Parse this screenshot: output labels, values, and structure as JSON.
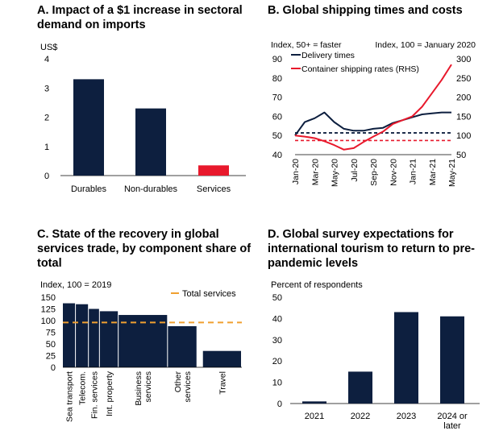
{
  "chart_data": [
    {
      "id": "A",
      "type": "bar",
      "title": "A. Impact of a $1 increase in sectoral demand on imports",
      "ylabel": "US$",
      "ylim": [
        0,
        4
      ],
      "yticks": [
        0,
        1,
        2,
        3,
        4
      ],
      "categories": [
        "Durables",
        "Non-durables",
        "Services"
      ],
      "values": [
        3.3,
        2.3,
        0.35
      ],
      "colors": [
        "#0d1f3f",
        "#0d1f3f",
        "#e8192c"
      ]
    },
    {
      "id": "B",
      "type": "line",
      "title": "B. Global shipping times and costs",
      "left_axis_label": "Index, 50+ = faster",
      "right_axis_label": "Index, 100 = January 2020",
      "ylim_left": [
        40,
        90
      ],
      "yticks_left": [
        40,
        50,
        60,
        70,
        80,
        90
      ],
      "ylim_right": [
        50,
        300
      ],
      "yticks_right": [
        50,
        100,
        150,
        200,
        250,
        300
      ],
      "x": [
        "Jan-20",
        "Feb-20",
        "Mar-20",
        "Apr-20",
        "May-20",
        "Jun-20",
        "Jul-20",
        "Aug-20",
        "Sep-20",
        "Oct-20",
        "Nov-20",
        "Dec-20",
        "Jan-21",
        "Feb-21",
        "Mar-21",
        "Apr-21",
        "May-21"
      ],
      "xtick_labels": [
        "Jan-20",
        "Mar-20",
        "May-20",
        "Jul-20",
        "Sep-20",
        "Nov-20",
        "Jan-21",
        "Mar-21",
        "May-21"
      ],
      "series": [
        {
          "name": "Delivery times",
          "axis": "left",
          "color": "#0d1f3f",
          "values": [
            50,
            57,
            59,
            62,
            57,
            53.5,
            52.5,
            52.5,
            53.5,
            54,
            56.5,
            58,
            59.5,
            61,
            61.5,
            62,
            62
          ]
        },
        {
          "name": "Container shipping rates (RHS)",
          "axis": "right",
          "color": "#e8192c",
          "values": [
            100,
            97,
            93,
            85,
            75,
            63,
            67,
            83,
            97,
            110,
            130,
            140,
            150,
            175,
            210,
            245,
            285
          ]
        }
      ],
      "reference_lines": [
        {
          "axis": "left",
          "value": 51.3,
          "color": "#0d1f3f",
          "style": "dashed"
        },
        {
          "axis": "right",
          "value": 107,
          "color": "#0d1f3f",
          "style": "dashed"
        },
        {
          "axis": "right",
          "value": 87,
          "color": "#e8192c",
          "style": "dashed"
        }
      ]
    },
    {
      "id": "C",
      "type": "bar",
      "title": "C. State of the recovery in global services trade, by component share of total",
      "ylabel": "Index, 100 = 2019",
      "ylim": [
        0,
        150
      ],
      "yticks": [
        0,
        25,
        50,
        75,
        100,
        125,
        150
      ],
      "categories": [
        "Sea transport",
        "Telecom.",
        "Fin. services",
        "Int. property",
        "Business services",
        "Other services",
        "Travel"
      ],
      "category_labels": [
        [
          "Sea transport"
        ],
        [
          "Telecom."
        ],
        [
          "Fin. services"
        ],
        [
          "Int. property"
        ],
        [
          "Business",
          "services"
        ],
        [
          "Other",
          "services"
        ],
        [
          "Travel"
        ]
      ],
      "values": [
        137,
        135,
        125,
        120,
        112,
        88,
        35
      ],
      "shares": [
        1.0,
        1.0,
        0.85,
        1.45,
        3.8,
        2.7,
        3.0
      ],
      "reference": {
        "name": "Total services",
        "value": 96,
        "color": "#f0a030",
        "style": "dashed"
      }
    },
    {
      "id": "D",
      "type": "bar",
      "title": "D. Global survey expectations for international tourism to return to pre-pandemic levels",
      "ylabel": "Percent of respondents",
      "ylim": [
        0,
        50
      ],
      "yticks": [
        0,
        10,
        20,
        30,
        40,
        50
      ],
      "categories": [
        "2021",
        "2022",
        "2023",
        "2024 or later"
      ],
      "category_labels": [
        [
          "2021"
        ],
        [
          "2022"
        ],
        [
          "2023"
        ],
        [
          "2024 or",
          "later"
        ]
      ],
      "values": [
        1,
        15,
        43,
        41
      ],
      "color": "#0d1f3f"
    }
  ]
}
